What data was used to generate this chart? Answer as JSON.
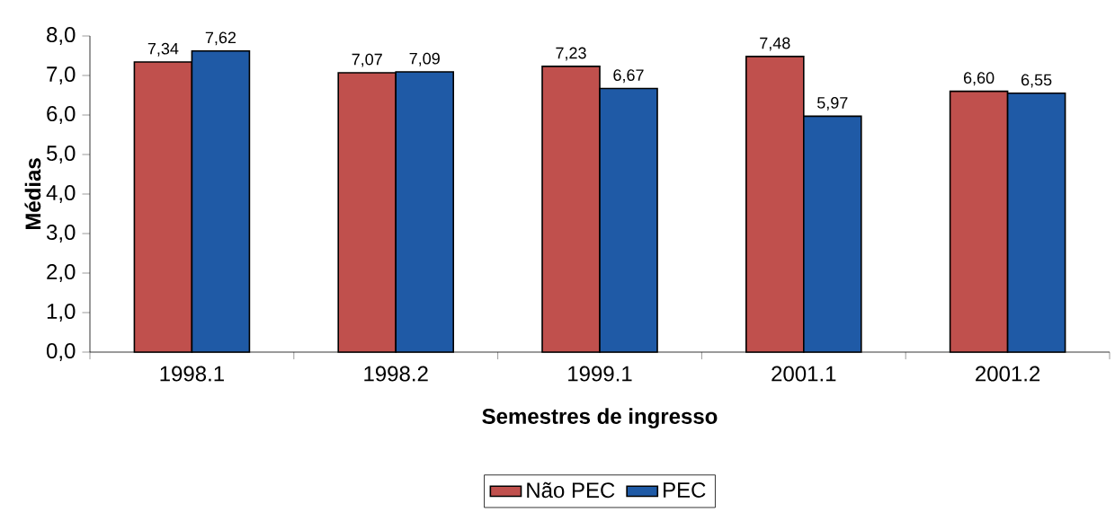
{
  "chart_data": {
    "type": "bar",
    "xlabel": "Semestres de ingresso",
    "ylabel": "Médias",
    "categories": [
      "1998.1",
      "1998.2",
      "1999.1",
      "2001.1",
      "2001.2"
    ],
    "series": [
      {
        "name": "Não PEC",
        "color": "#c0504d",
        "values": [
          7.34,
          7.07,
          7.23,
          7.48,
          6.6
        ],
        "value_labels": [
          "7,34",
          "7,07",
          "7,23",
          "7,48",
          "6,60"
        ]
      },
      {
        "name": "PEC",
        "color": "#1f5aa6",
        "values": [
          7.62,
          7.09,
          6.67,
          5.97,
          6.55
        ],
        "value_labels": [
          "7,62",
          "7,09",
          "6,67",
          "5,97",
          "6,55"
        ]
      }
    ],
    "ylim": [
      0,
      8
    ],
    "yticks": [
      {
        "value": 0,
        "label": "0,0"
      },
      {
        "value": 1,
        "label": "1,0"
      },
      {
        "value": 2,
        "label": "2,0"
      },
      {
        "value": 3,
        "label": "3,0"
      },
      {
        "value": 4,
        "label": "4,0"
      },
      {
        "value": 5,
        "label": "5,0"
      },
      {
        "value": 6,
        "label": "6,0"
      },
      {
        "value": 7,
        "label": "7,0"
      },
      {
        "value": 8,
        "label": "8,0"
      }
    ],
    "legend": "bottom"
  }
}
